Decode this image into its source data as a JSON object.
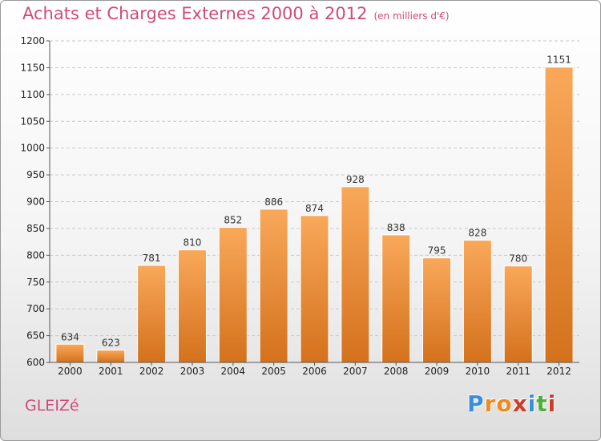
{
  "chart_data": {
    "type": "bar",
    "title": "Achats et Charges Externes 2000 à 2012",
    "unit": "(en milliers d'€)",
    "categories": [
      "2000",
      "2001",
      "2002",
      "2003",
      "2004",
      "2005",
      "2006",
      "2007",
      "2008",
      "2009",
      "2010",
      "2011",
      "2012"
    ],
    "values": [
      634,
      623,
      781,
      810,
      852,
      886,
      874,
      928,
      838,
      795,
      828,
      780,
      1151
    ],
    "ylim": [
      600,
      1200
    ],
    "yticks": [
      600,
      650,
      700,
      750,
      800,
      850,
      900,
      950,
      1000,
      1050,
      1100,
      1150,
      1200
    ],
    "grid": "horizontal dashed",
    "bar_color_top": "#f9a85a",
    "bar_color_bottom": "#d4711c"
  },
  "location": "GLEIZé",
  "logo": {
    "letters": [
      "P",
      "r",
      "o",
      "x",
      "i",
      "t",
      "i"
    ],
    "colors": [
      "#3a8fd6",
      "#f08a1c",
      "#f08a1c",
      "#d23a2a",
      "#3a8fd6",
      "#4caf3a",
      "#d23a2a"
    ]
  }
}
